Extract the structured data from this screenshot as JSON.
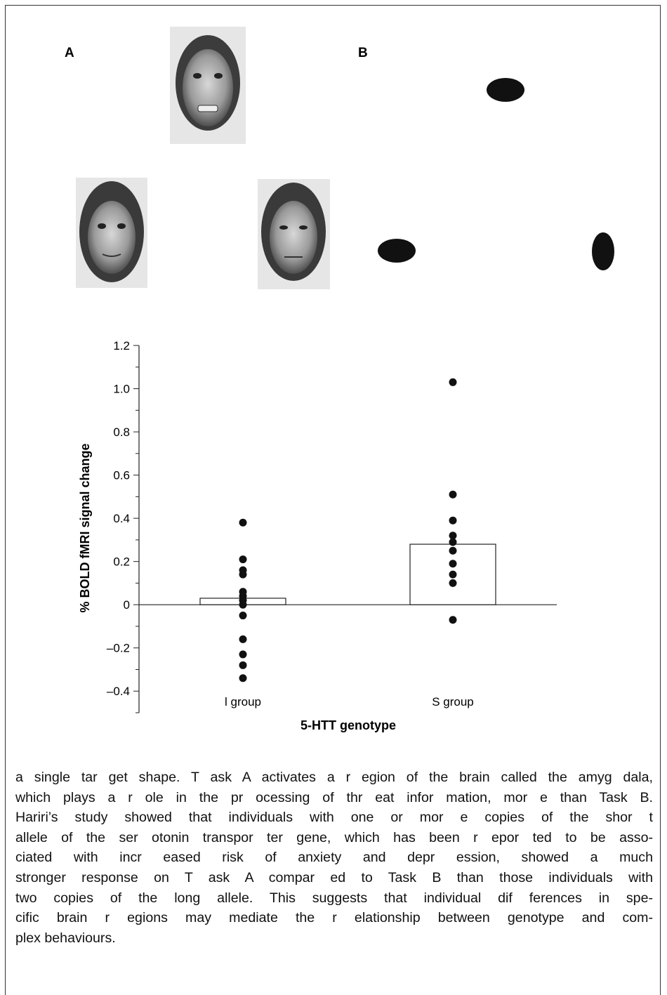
{
  "panels": [
    "A",
    "B"
  ],
  "chart_data": {
    "type": "bar",
    "categories": [
      "l group",
      "S group"
    ],
    "values": [
      0.03,
      0.28
    ],
    "bar_color": "#ffffff",
    "points": [
      [
        0.38,
        0.21,
        0.16,
        0.14,
        0.06,
        0.04,
        0.02,
        0,
        -0.05,
        -0.16,
        -0.23,
        -0.28,
        -0.34
      ],
      [
        1.03,
        0.51,
        0.39,
        0.32,
        0.29,
        0.25,
        0.19,
        0.14,
        0.1,
        -0.07
      ]
    ],
    "point_color": "#111111",
    "ylabel": "% BOLD fMRI signal change",
    "xlabel": "5-HTT genotype",
    "ylim": [
      -0.5,
      1.2
    ],
    "yticks": [
      1.2,
      {
        "value": 1,
        "label": "1.0"
      },
      0.8,
      0.6,
      0.4,
      0.2,
      0,
      {
        "value": -0.2,
        "label": "–0.2"
      },
      {
        "value": -0.4,
        "label": "–0.4"
      }
    ],
    "minor_yticks": [
      1.1,
      0.9,
      0.7,
      0.5,
      0.3,
      0.1,
      -0.1,
      -0.3,
      -0.5
    ]
  },
  "body": {
    "lines": [
      "a single tar get shape. T ask A activates a r egion of the brain called the amyg dala,",
      "which plays a r ole in the pr ocessing of thr eat infor mation, mor e than Task B.",
      "Hariri’s study showed that individuals with one or mor e copies of the shor t",
      "allele of the ser otonin transpor ter gene, which has been r epor ted to be asso-",
      "ciated with incr eased risk of anxiety and depr ession, showed a much",
      "stronger response on T ask A compar ed to Task B than those individuals with",
      "two copies of the long allele. This suggests that individual dif ferences in spe-",
      "cific brain r egions may mediate the r elationship between genotype and com-",
      "plex behaviours."
    ]
  }
}
